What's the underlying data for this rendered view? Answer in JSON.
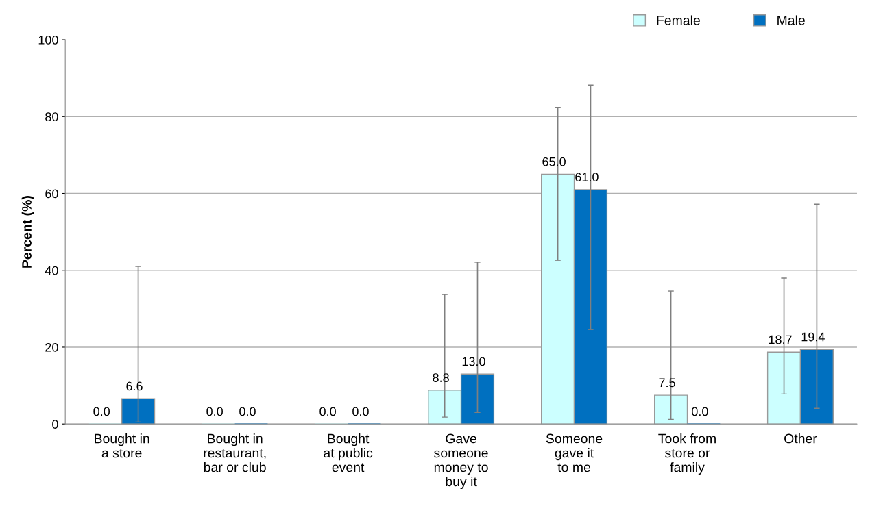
{
  "chart_data": {
    "type": "bar",
    "ylabel": "Percent (%)",
    "categories": [
      "Bought in\na store",
      "Bought in\nrestaurant,\nbar or club",
      "Bought\nat public\nevent",
      "Gave\nsomeone\nmoney to\nbuy it",
      "Someone\ngave it\nto me",
      "Took from\nstore or\nfamily",
      "Other"
    ],
    "series": [
      {
        "name": "Female",
        "color": "#ccffff",
        "values": [
          0.0,
          0.0,
          0.0,
          8.8,
          65.0,
          7.5,
          18.7
        ],
        "value_labels": [
          "0.0",
          "0.0",
          "0.0",
          "8.8",
          "65.0",
          "7.5",
          "18.7"
        ],
        "errors": [
          null,
          null,
          null,
          [
            1.8,
            33.7
          ],
          [
            42.6,
            82.4
          ],
          [
            1.2,
            34.6
          ],
          [
            7.8,
            38.0
          ]
        ]
      },
      {
        "name": "Male",
        "color": "#0070c0",
        "values": [
          6.6,
          0.0,
          0.0,
          13.0,
          61.0,
          0.0,
          19.4
        ],
        "value_labels": [
          "6.6",
          "0.0",
          "0.0",
          "13.0",
          "61.0",
          "0.0",
          "19.4"
        ],
        "errors": [
          [
            0.5,
            41.0
          ],
          null,
          null,
          [
            3.0,
            42.1
          ],
          [
            24.6,
            88.2
          ],
          null,
          [
            4.1,
            57.2
          ]
        ]
      }
    ],
    "ylim": [
      0,
      100
    ],
    "yticks": [
      0,
      20,
      40,
      60,
      80,
      100
    ],
    "grid": "y",
    "legend": "top right"
  }
}
